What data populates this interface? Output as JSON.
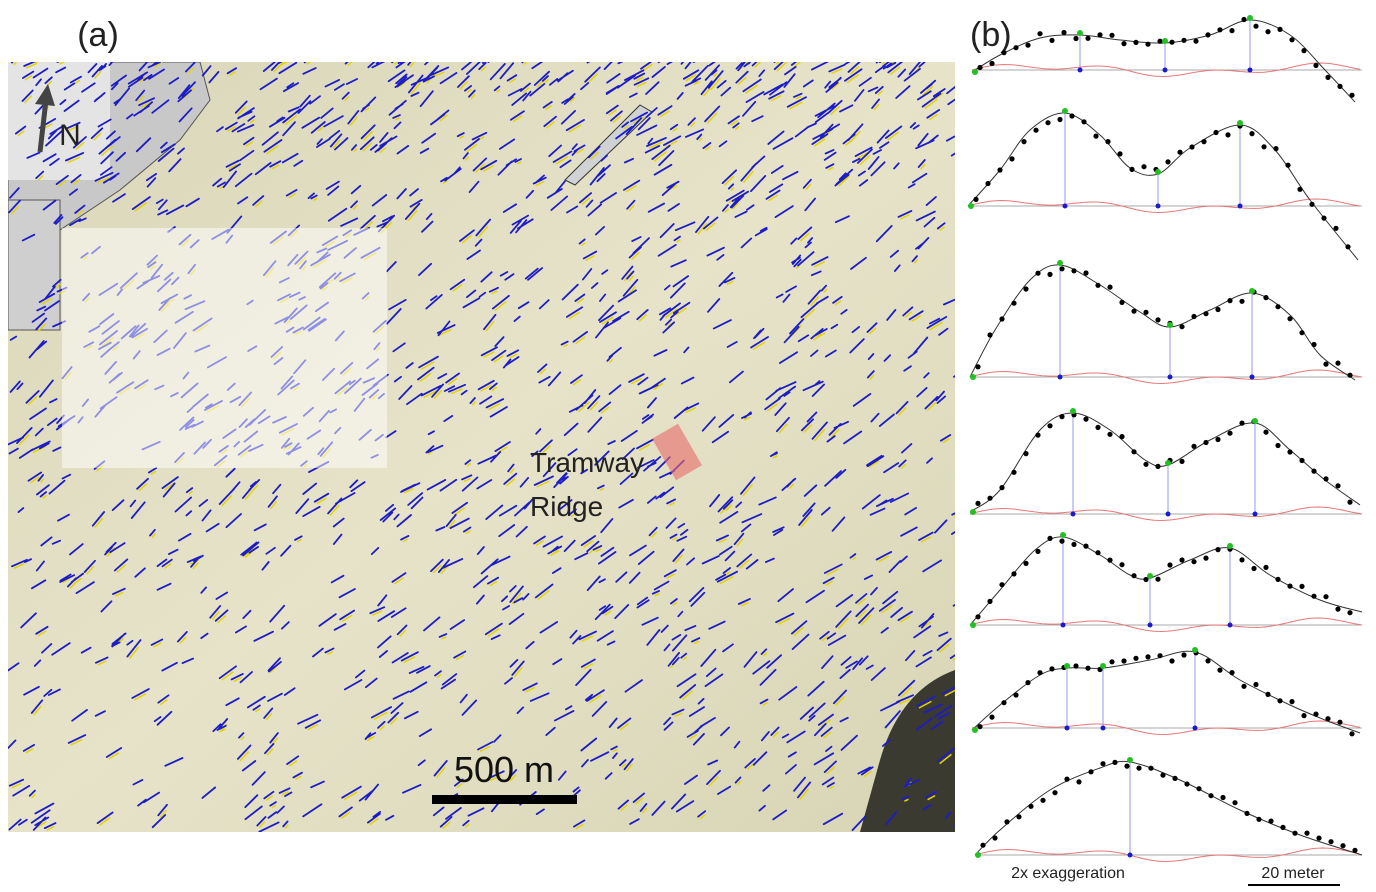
{
  "panel_a": {
    "label": "(a)",
    "north": "N",
    "site_label_line1": "Tramway",
    "site_label_line2": "Ridge",
    "scale_bar": "500 m"
  },
  "panel_b": {
    "label": "(b)",
    "exaggeration_note": "2x exaggeration",
    "scale_bar": "20 meter"
  }
}
